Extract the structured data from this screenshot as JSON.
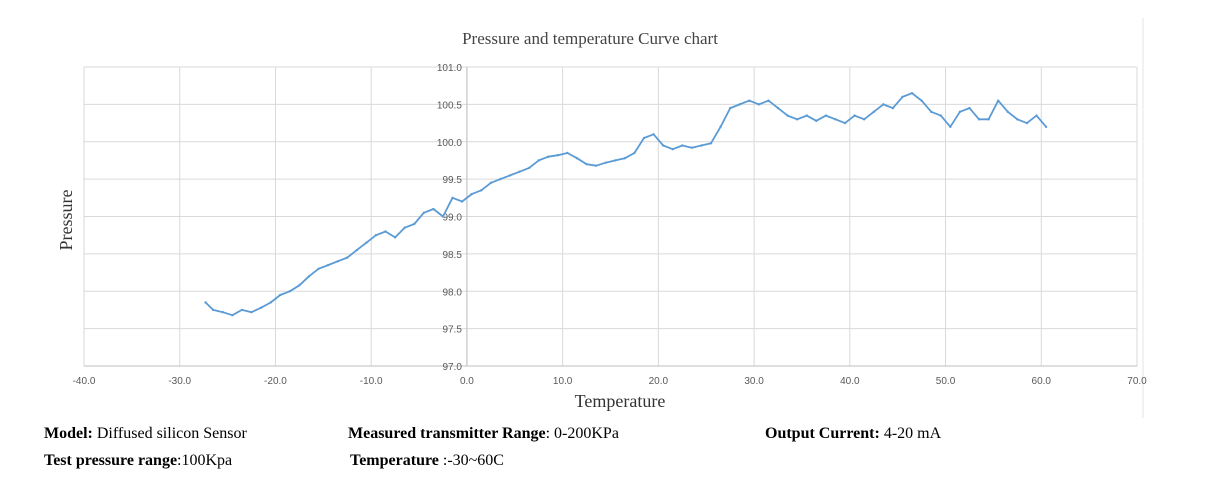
{
  "chart_data": {
    "type": "line",
    "title": "Pressure and temperature Curve chart",
    "xlabel": "Temperature",
    "ylabel": "Pressure",
    "xlim": [
      -40,
      70
    ],
    "ylim": [
      97.0,
      101.0
    ],
    "x_ticks": [
      "-40.0",
      "-30.0",
      "-20.0",
      "-10.0",
      "0.0",
      "10.0",
      "20.0",
      "30.0",
      "40.0",
      "50.0",
      "60.0",
      "70.0"
    ],
    "y_ticks": [
      "97.0",
      "97.5",
      "98.0",
      "98.5",
      "99.0",
      "99.5",
      "100.0",
      "100.5",
      "101.0"
    ],
    "grid": true,
    "legend": "none",
    "series_color": "#5b9bd5",
    "series": [
      {
        "x": [
          -27.3,
          -26.5,
          -25.5,
          -24.5,
          -23.5,
          -22.5,
          -21.5,
          -20.5,
          -19.5,
          -18.5,
          -17.5,
          -16.5,
          -15.5,
          -14.5,
          -13.5,
          -12.5,
          -11.5,
          -10.5,
          -9.5,
          -8.5,
          -7.5,
          -6.5,
          -5.5,
          -4.5,
          -3.5,
          -2.5,
          -1.5,
          -0.5,
          0.5,
          1.5,
          2.5,
          3.5,
          4.5,
          5.5,
          6.5,
          7.5,
          8.5,
          9.5,
          10.5,
          11.5,
          12.5,
          13.5,
          14.5,
          15.5,
          16.5,
          17.5,
          18.5,
          19.5,
          20.5,
          21.5,
          22.5,
          23.5,
          24.5,
          25.5,
          26.5,
          27.5,
          28.5,
          29.5,
          30.5,
          31.5,
          32.5,
          33.5,
          34.5,
          35.5,
          36.5,
          37.5,
          38.5,
          39.5,
          40.5,
          41.5,
          42.5,
          43.5,
          44.5,
          45.5,
          46.5,
          47.5,
          48.5,
          49.5,
          50.5,
          51.5,
          52.5,
          53.5,
          54.5,
          55.5,
          56.5,
          57.5,
          58.5,
          59.5,
          60.5
        ],
        "y": [
          97.85,
          97.75,
          97.72,
          97.68,
          97.75,
          97.72,
          97.78,
          97.85,
          97.95,
          98.0,
          98.08,
          98.2,
          98.3,
          98.35,
          98.4,
          98.45,
          98.55,
          98.65,
          98.75,
          98.8,
          98.72,
          98.85,
          98.9,
          99.05,
          99.1,
          99.0,
          99.25,
          99.2,
          99.3,
          99.35,
          99.45,
          99.5,
          99.55,
          99.6,
          99.65,
          99.75,
          99.8,
          99.82,
          99.85,
          99.78,
          99.7,
          99.68,
          99.72,
          99.75,
          99.78,
          99.85,
          100.05,
          100.1,
          99.95,
          99.9,
          99.95,
          99.92,
          99.95,
          99.98,
          100.2,
          100.45,
          100.5,
          100.55,
          100.5,
          100.55,
          100.45,
          100.35,
          100.3,
          100.35,
          100.28,
          100.35,
          100.3,
          100.25,
          100.35,
          100.3,
          100.4,
          100.5,
          100.45,
          100.6,
          100.65,
          100.55,
          100.4,
          100.35,
          100.2,
          100.4,
          100.45,
          100.3,
          100.3,
          100.55,
          100.4,
          100.3,
          100.25,
          100.35,
          100.2
        ]
      }
    ]
  },
  "specs": {
    "model_label": "Model:",
    "model_value": " Diffused silicon Sensor",
    "range_label": "Measured transmitter Range",
    "range_value": ": 0-200KPa",
    "current_label": "Output Current:",
    "current_value": " 4-20 mA",
    "test_label": "Test pressure range",
    "test_value": ":100Kpa",
    "temp_label": "Temperature",
    "temp_value": " :-30~60C"
  }
}
